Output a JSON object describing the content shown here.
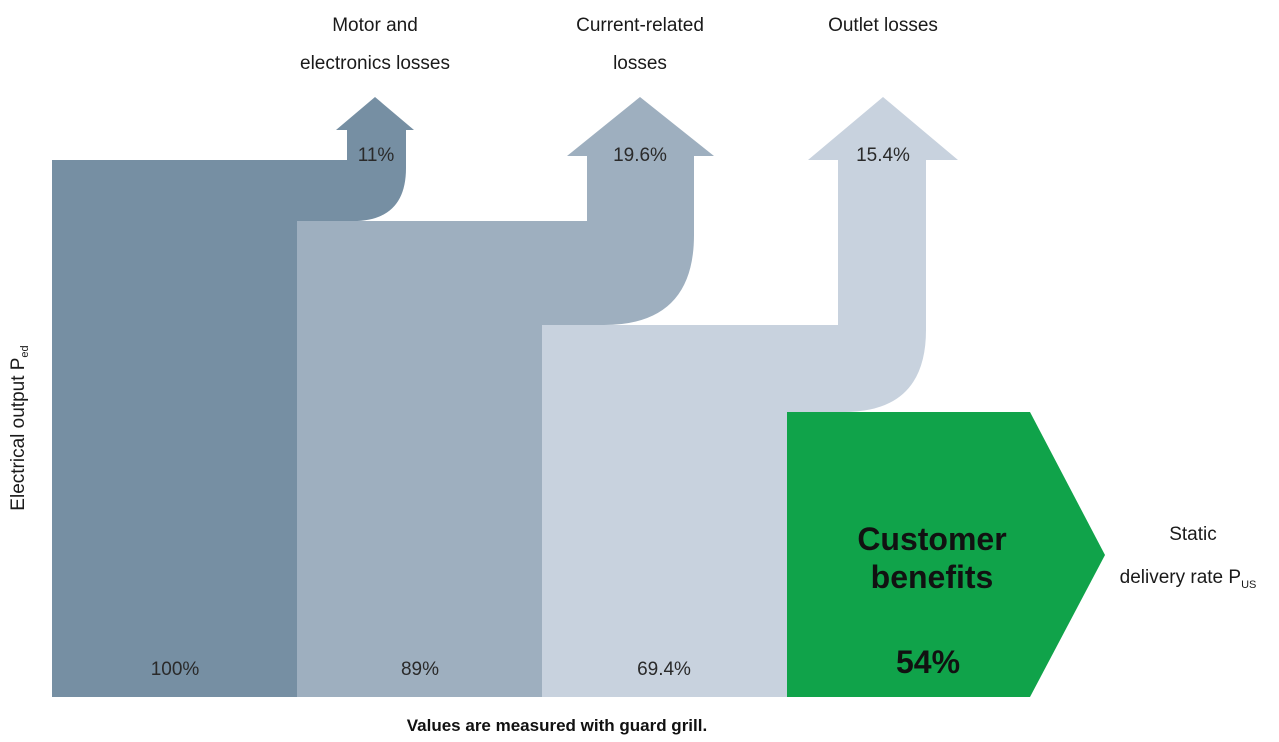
{
  "diagram": {
    "y_axis_label": "Electrical output P",
    "y_axis_label_sub": "ed",
    "output_label_line1": "Static",
    "output_label_line2": "delivery rate P",
    "output_label_sub": "US",
    "footnote": "Values are measured with guard grill.",
    "stages": [
      {
        "value": "100%",
        "color": "#768fa3"
      },
      {
        "value": "89%",
        "color": "#9eafbf"
      },
      {
        "value": "69.4%",
        "color": "#c8d2de"
      }
    ],
    "losses": [
      {
        "label_line1": "Motor and",
        "label_line2": "electronics losses",
        "value": "11%",
        "color": "#768fa3"
      },
      {
        "label_line1": "Current-related",
        "label_line2": "losses",
        "value": "19.6%",
        "color": "#9eafbf"
      },
      {
        "label_line1": "Outlet losses",
        "label_line2": "",
        "value": "15.4%",
        "color": "#c8d2de"
      }
    ],
    "benefit": {
      "title_line1": "Customer",
      "title_line2": "benefits",
      "value": "54%",
      "color": "#10a34a"
    }
  }
}
